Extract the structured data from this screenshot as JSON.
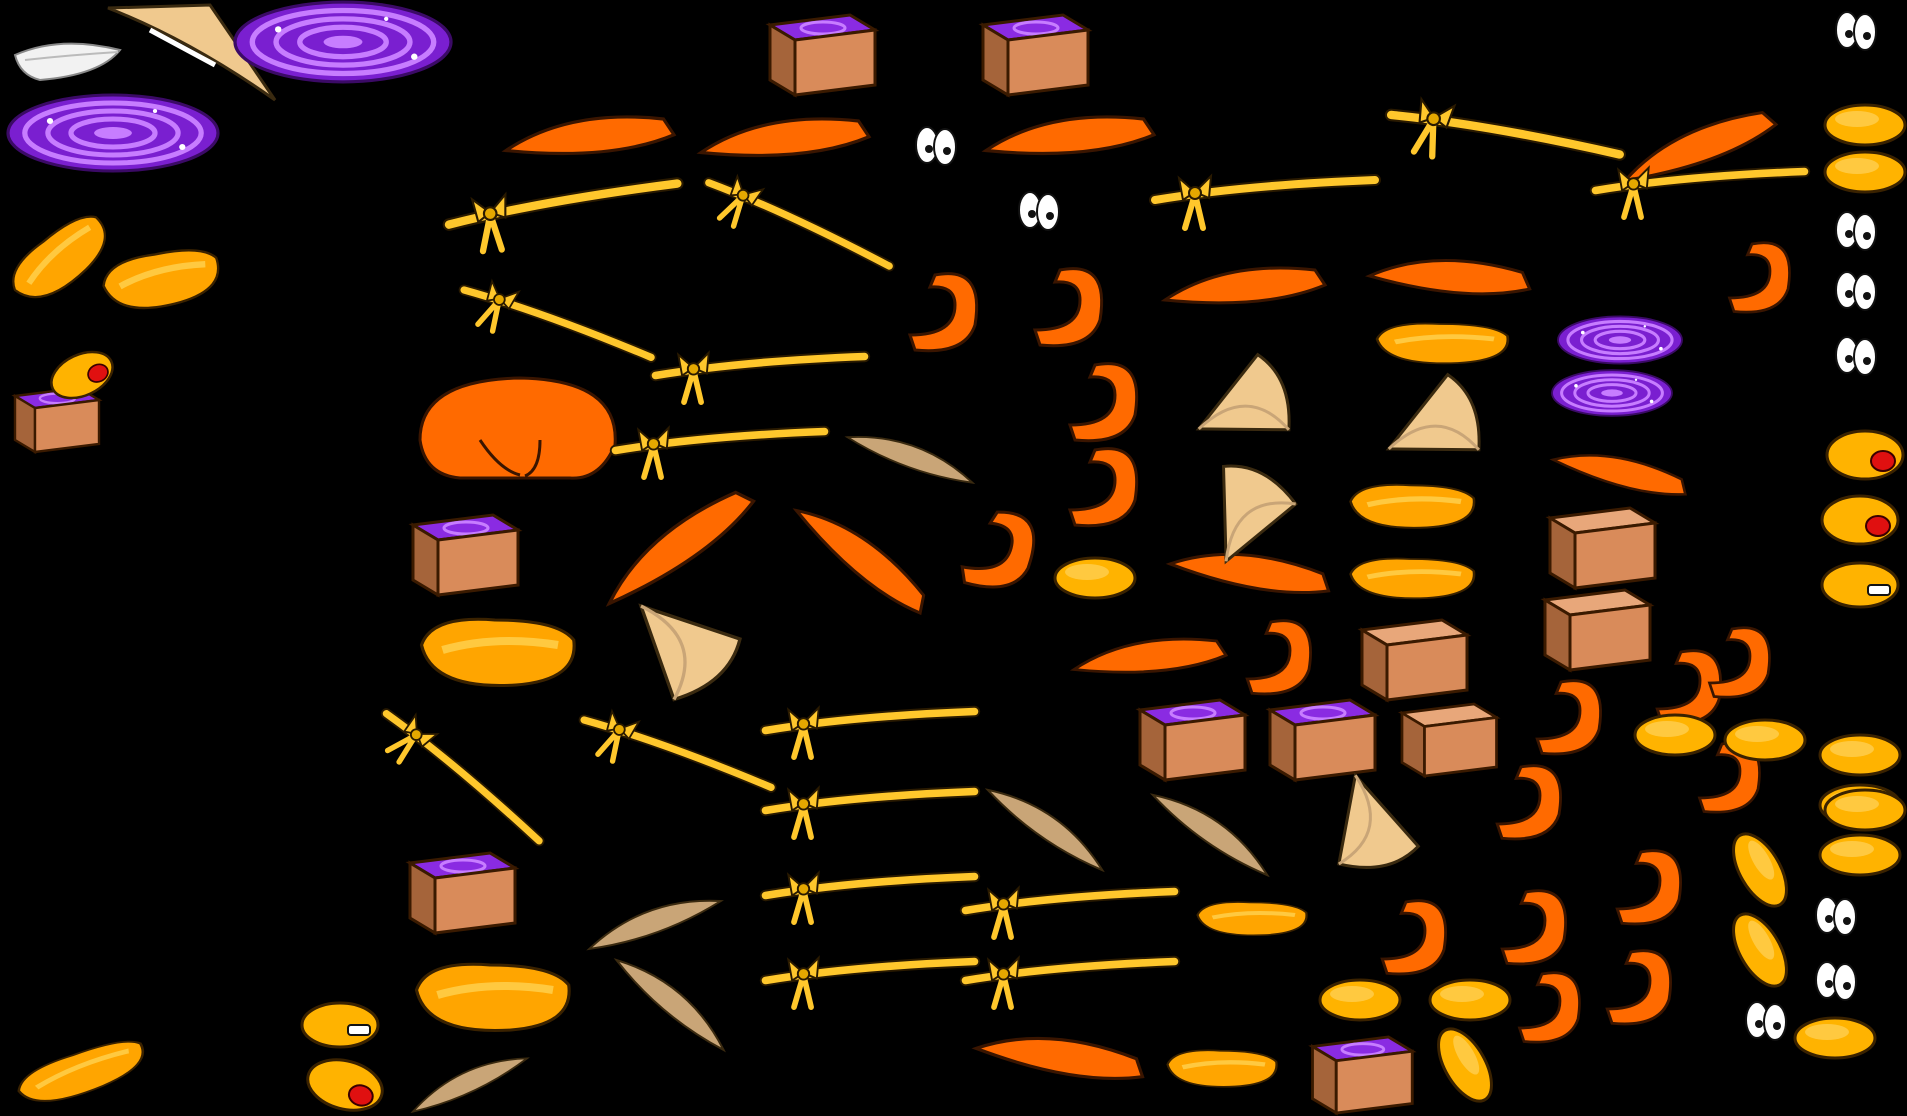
{
  "sheet": {
    "background": "#000000",
    "palette": {
      "orange": "#FF6A00",
      "orange_dark": "#B84500",
      "yellow": "#FFB300",
      "yellow_light": "#FFC940",
      "rope": "#FFC72C",
      "rope_dark": "#B88A00",
      "paper": "#F0C98E",
      "paper_dark": "#C9A577",
      "wood": "#C89E6E",
      "box": "#D98B5A",
      "box_dark": "#A5643A",
      "portal": "#8A2BE2",
      "portal_light": "#C77DFF",
      "white": "#FFFFFF",
      "red": "#E01010"
    },
    "sprites": [
      {
        "kind": "feather-icon"
      },
      {
        "kind": "paper-fan-icon"
      },
      {
        "kind": "purple-portal-icon"
      },
      {
        "kind": "wrapped-box-icon"
      },
      {
        "kind": "orange-cloth-icon"
      },
      {
        "kind": "eyes-icon"
      },
      {
        "kind": "tied-rope-icon"
      },
      {
        "kind": "yellow-blob-icon"
      },
      {
        "kind": "orange-hook-icon"
      },
      {
        "kind": "orange-pouch-icon"
      },
      {
        "kind": "wood-shard-icon"
      },
      {
        "kind": "hungry-face-icon"
      },
      {
        "kind": "toothy-face-icon"
      },
      {
        "kind": "open-box-icon"
      }
    ]
  }
}
